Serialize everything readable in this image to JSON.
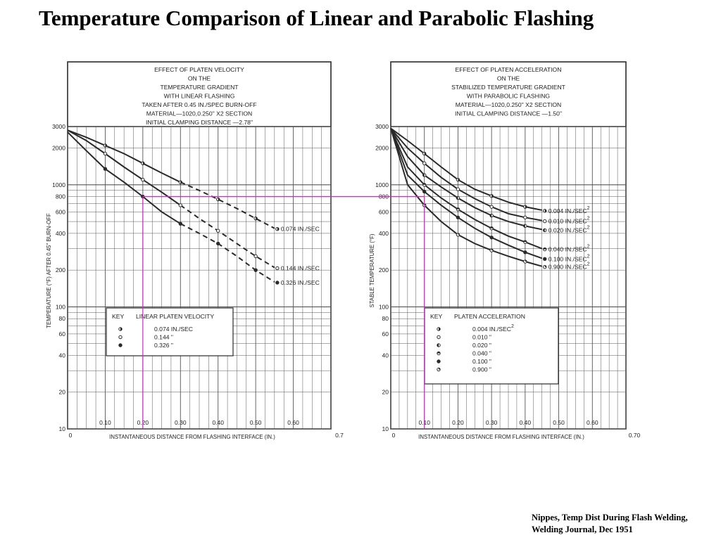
{
  "slide": {
    "title": "Temperature Comparison of Linear and Parabolic Flashing",
    "citation_line1": "Nippes, Temp Dist During Flash Welding,",
    "citation_line2": "Welding Journal, Dec 1951"
  },
  "colors": {
    "ink": "#2a2a2a",
    "grid": "#555555",
    "highlight": "#e020d0"
  },
  "chart_data": [
    {
      "type": "line",
      "title": [
        "EFFECT OF PLATEN VELOCITY",
        "ON THE",
        "TEMPERATURE GRADIENT",
        "WITH LINEAR FLASHING",
        "TAKEN AFTER 0.45 IN./SPEC BURN-OFF",
        "MATERIAL—1020,0.250\" X2 SECTION",
        "INITIAL CLAMPING DISTANCE —2.78\""
      ],
      "xlabel": "INSTANTANEOUS DISTANCE FROM FLASHING INTERFACE (IN.)",
      "ylabel": "TEMPERATURE (°F) AFTER 0.45\" BURN-OFF",
      "xlim": [
        0,
        0.7
      ],
      "ylim": [
        10,
        3000
      ],
      "y_scale": "log",
      "x_ticks": [
        "0",
        "0.10",
        "0.20",
        "0.30",
        "0.40",
        "0.50",
        "0.60",
        "0.7"
      ],
      "y_ticks": [
        "3000",
        "2000",
        "1000",
        "800",
        "600",
        "400",
        "200",
        "100",
        "80",
        "60",
        "40",
        "20",
        "10"
      ],
      "grid": true,
      "series": [
        {
          "name": "0.074 IN./SEC",
          "marker": "half",
          "x": [
            0,
            0.05,
            0.1,
            0.15,
            0.2,
            0.25,
            0.3,
            0.35,
            0.4,
            0.45,
            0.5,
            0.55
          ],
          "y": [
            2800,
            2450,
            2100,
            1800,
            1500,
            1250,
            1050,
            900,
            760,
            640,
            530,
            440
          ]
        },
        {
          "name": "0.144 IN./SEC",
          "marker": "open",
          "x": [
            0,
            0.05,
            0.1,
            0.15,
            0.2,
            0.25,
            0.3,
            0.35,
            0.4,
            0.45,
            0.5,
            0.55
          ],
          "y": [
            2800,
            2300,
            1800,
            1400,
            1100,
            870,
            680,
            530,
            420,
            330,
            260,
            210
          ]
        },
        {
          "name": "0.326 IN./SEC",
          "marker": "filled",
          "x": [
            0,
            0.05,
            0.1,
            0.15,
            0.2,
            0.25,
            0.3,
            0.35,
            0.4,
            0.45,
            0.5,
            0.55
          ],
          "y": [
            2700,
            1900,
            1350,
            1050,
            800,
            600,
            480,
            400,
            330,
            260,
            200,
            160
          ]
        }
      ],
      "legend": {
        "title": "KEY",
        "heading": "LINEAR PLATEN VELOCITY",
        "entries": [
          {
            "symbol": "half",
            "label": "0.074 IN./SEC"
          },
          {
            "symbol": "open",
            "label": "0.144 \""
          },
          {
            "symbol": "filled",
            "label": "0.326 \""
          }
        ],
        "position": "lower-left"
      },
      "series_labels": [
        "0.074 IN./SEC",
        "0.144 IN./SEC",
        "0.326 IN./SEC"
      ]
    },
    {
      "type": "line",
      "title": [
        "EFFECT OF PLATEN ACCELERATION",
        "ON THE",
        "STABILIZED TEMPERATURE GRADIENT",
        "WITH PARABOLIC FLASHING",
        "MATERIAL—1020,0.250\" X2 SECTION",
        "INITIAL CLAMPING DISTANCE —1.50\""
      ],
      "xlabel": "INSTANTANEOUS DISTANCE FROM FLASHING INTERFACE (IN.)",
      "ylabel": "STABLE TEMPERATURE (°F)",
      "xlim": [
        0,
        0.7
      ],
      "ylim": [
        10,
        3000
      ],
      "y_scale": "log",
      "x_ticks": [
        "0",
        "0.10",
        "0.20",
        "0.30",
        "0.40",
        "0.50",
        "0.60",
        "0.70"
      ],
      "y_ticks": [
        "3000",
        "2000",
        "1000",
        "800",
        "600",
        "400",
        "200",
        "100",
        "80",
        "60",
        "40",
        "20",
        "10"
      ],
      "grid": true,
      "series": [
        {
          "name": "0.004 IN./SEC²",
          "marker": "half",
          "x": [
            0,
            0.05,
            0.1,
            0.15,
            0.2,
            0.25,
            0.3,
            0.35,
            0.4,
            0.45
          ],
          "y": [
            2900,
            2300,
            1800,
            1400,
            1100,
            920,
            810,
            720,
            660,
            620
          ]
        },
        {
          "name": "0.010 IN./SEC²",
          "marker": "open",
          "x": [
            0,
            0.05,
            0.1,
            0.15,
            0.2,
            0.25,
            0.3,
            0.35,
            0.4,
            0.45
          ],
          "y": [
            2900,
            2000,
            1500,
            1150,
            920,
            770,
            660,
            580,
            540,
            510
          ]
        },
        {
          "name": "0.020 IN./SEC²",
          "marker": "half-left",
          "x": [
            0,
            0.05,
            0.1,
            0.15,
            0.2,
            0.25,
            0.3,
            0.35,
            0.4,
            0.45
          ],
          "y": [
            2900,
            1700,
            1200,
            960,
            780,
            650,
            560,
            500,
            460,
            430
          ]
        },
        {
          "name": "0.040 IN./SEC²",
          "marker": "half-top",
          "x": [
            0,
            0.05,
            0.1,
            0.15,
            0.2,
            0.25,
            0.3,
            0.35,
            0.4,
            0.45
          ],
          "y": [
            2900,
            1400,
            1000,
            780,
            630,
            520,
            440,
            380,
            340,
            300
          ]
        },
        {
          "name": "0.100 IN./SEC²",
          "marker": "filled",
          "x": [
            0,
            0.05,
            0.1,
            0.15,
            0.2,
            0.25,
            0.3,
            0.35,
            0.4,
            0.45
          ],
          "y": [
            2900,
            1200,
            880,
            680,
            540,
            440,
            370,
            320,
            280,
            250
          ]
        },
        {
          "name": "0.900 IN./SEC²",
          "marker": "quarter",
          "x": [
            0,
            0.05,
            0.1,
            0.15,
            0.2,
            0.25,
            0.3,
            0.35,
            0.4,
            0.45
          ],
          "y": [
            2900,
            1000,
            680,
            500,
            390,
            330,
            290,
            260,
            235,
            215
          ]
        }
      ],
      "legend": {
        "title": "KEY",
        "heading": "PLATEN ACCELERATION",
        "entries": [
          {
            "symbol": "half",
            "label": "0.004 IN./SEC²"
          },
          {
            "symbol": "open",
            "label": "0.010 \""
          },
          {
            "symbol": "half-left",
            "label": "0.020 \""
          },
          {
            "symbol": "half-top",
            "label": "0.040 \""
          },
          {
            "symbol": "filled",
            "label": "0.100 \""
          },
          {
            "symbol": "quarter",
            "label": "0.900 \""
          }
        ],
        "position": "lower-right"
      },
      "series_labels": [
        "0.004 IN./SEC²",
        "0.010 IN./SEC²",
        "0.020 IN./SEC²",
        "0.040 IN./SEC²",
        "0.100 IN./SEC²",
        "0.900 IN./SEC²"
      ]
    }
  ],
  "annotations": {
    "highlight_temperature_F": 800,
    "left_highlight_x_in": 0.2,
    "right_highlight_x_in": 0.1
  }
}
